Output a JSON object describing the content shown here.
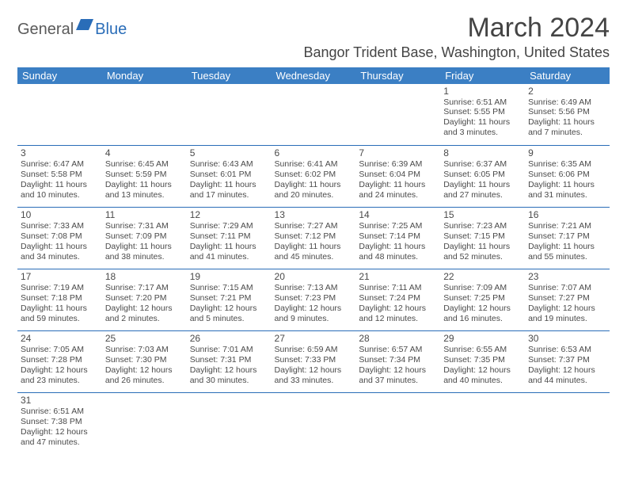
{
  "logo": {
    "part1": "General",
    "part2": "Blue"
  },
  "title": "March 2024",
  "location": "Bangor Trident Base, Washington, United States",
  "colors": {
    "header_bg": "#3b7fc4",
    "header_text": "#ffffff",
    "border": "#2a6db8",
    "text": "#4a4a4a",
    "logo_gray": "#5a5a5a",
    "logo_blue": "#2a6db8"
  },
  "dayHeaders": [
    "Sunday",
    "Monday",
    "Tuesday",
    "Wednesday",
    "Thursday",
    "Friday",
    "Saturday"
  ],
  "weeks": [
    [
      {
        "n": "",
        "lines": []
      },
      {
        "n": "",
        "lines": []
      },
      {
        "n": "",
        "lines": []
      },
      {
        "n": "",
        "lines": []
      },
      {
        "n": "",
        "lines": []
      },
      {
        "n": "1",
        "lines": [
          "Sunrise: 6:51 AM",
          "Sunset: 5:55 PM",
          "Daylight: 11 hours",
          "and 3 minutes."
        ]
      },
      {
        "n": "2",
        "lines": [
          "Sunrise: 6:49 AM",
          "Sunset: 5:56 PM",
          "Daylight: 11 hours",
          "and 7 minutes."
        ]
      }
    ],
    [
      {
        "n": "3",
        "lines": [
          "Sunrise: 6:47 AM",
          "Sunset: 5:58 PM",
          "Daylight: 11 hours",
          "and 10 minutes."
        ]
      },
      {
        "n": "4",
        "lines": [
          "Sunrise: 6:45 AM",
          "Sunset: 5:59 PM",
          "Daylight: 11 hours",
          "and 13 minutes."
        ]
      },
      {
        "n": "5",
        "lines": [
          "Sunrise: 6:43 AM",
          "Sunset: 6:01 PM",
          "Daylight: 11 hours",
          "and 17 minutes."
        ]
      },
      {
        "n": "6",
        "lines": [
          "Sunrise: 6:41 AM",
          "Sunset: 6:02 PM",
          "Daylight: 11 hours",
          "and 20 minutes."
        ]
      },
      {
        "n": "7",
        "lines": [
          "Sunrise: 6:39 AM",
          "Sunset: 6:04 PM",
          "Daylight: 11 hours",
          "and 24 minutes."
        ]
      },
      {
        "n": "8",
        "lines": [
          "Sunrise: 6:37 AM",
          "Sunset: 6:05 PM",
          "Daylight: 11 hours",
          "and 27 minutes."
        ]
      },
      {
        "n": "9",
        "lines": [
          "Sunrise: 6:35 AM",
          "Sunset: 6:06 PM",
          "Daylight: 11 hours",
          "and 31 minutes."
        ]
      }
    ],
    [
      {
        "n": "10",
        "lines": [
          "Sunrise: 7:33 AM",
          "Sunset: 7:08 PM",
          "Daylight: 11 hours",
          "and 34 minutes."
        ]
      },
      {
        "n": "11",
        "lines": [
          "Sunrise: 7:31 AM",
          "Sunset: 7:09 PM",
          "Daylight: 11 hours",
          "and 38 minutes."
        ]
      },
      {
        "n": "12",
        "lines": [
          "Sunrise: 7:29 AM",
          "Sunset: 7:11 PM",
          "Daylight: 11 hours",
          "and 41 minutes."
        ]
      },
      {
        "n": "13",
        "lines": [
          "Sunrise: 7:27 AM",
          "Sunset: 7:12 PM",
          "Daylight: 11 hours",
          "and 45 minutes."
        ]
      },
      {
        "n": "14",
        "lines": [
          "Sunrise: 7:25 AM",
          "Sunset: 7:14 PM",
          "Daylight: 11 hours",
          "and 48 minutes."
        ]
      },
      {
        "n": "15",
        "lines": [
          "Sunrise: 7:23 AM",
          "Sunset: 7:15 PM",
          "Daylight: 11 hours",
          "and 52 minutes."
        ]
      },
      {
        "n": "16",
        "lines": [
          "Sunrise: 7:21 AM",
          "Sunset: 7:17 PM",
          "Daylight: 11 hours",
          "and 55 minutes."
        ]
      }
    ],
    [
      {
        "n": "17",
        "lines": [
          "Sunrise: 7:19 AM",
          "Sunset: 7:18 PM",
          "Daylight: 11 hours",
          "and 59 minutes."
        ]
      },
      {
        "n": "18",
        "lines": [
          "Sunrise: 7:17 AM",
          "Sunset: 7:20 PM",
          "Daylight: 12 hours",
          "and 2 minutes."
        ]
      },
      {
        "n": "19",
        "lines": [
          "Sunrise: 7:15 AM",
          "Sunset: 7:21 PM",
          "Daylight: 12 hours",
          "and 5 minutes."
        ]
      },
      {
        "n": "20",
        "lines": [
          "Sunrise: 7:13 AM",
          "Sunset: 7:23 PM",
          "Daylight: 12 hours",
          "and 9 minutes."
        ]
      },
      {
        "n": "21",
        "lines": [
          "Sunrise: 7:11 AM",
          "Sunset: 7:24 PM",
          "Daylight: 12 hours",
          "and 12 minutes."
        ]
      },
      {
        "n": "22",
        "lines": [
          "Sunrise: 7:09 AM",
          "Sunset: 7:25 PM",
          "Daylight: 12 hours",
          "and 16 minutes."
        ]
      },
      {
        "n": "23",
        "lines": [
          "Sunrise: 7:07 AM",
          "Sunset: 7:27 PM",
          "Daylight: 12 hours",
          "and 19 minutes."
        ]
      }
    ],
    [
      {
        "n": "24",
        "lines": [
          "Sunrise: 7:05 AM",
          "Sunset: 7:28 PM",
          "Daylight: 12 hours",
          "and 23 minutes."
        ]
      },
      {
        "n": "25",
        "lines": [
          "Sunrise: 7:03 AM",
          "Sunset: 7:30 PM",
          "Daylight: 12 hours",
          "and 26 minutes."
        ]
      },
      {
        "n": "26",
        "lines": [
          "Sunrise: 7:01 AM",
          "Sunset: 7:31 PM",
          "Daylight: 12 hours",
          "and 30 minutes."
        ]
      },
      {
        "n": "27",
        "lines": [
          "Sunrise: 6:59 AM",
          "Sunset: 7:33 PM",
          "Daylight: 12 hours",
          "and 33 minutes."
        ]
      },
      {
        "n": "28",
        "lines": [
          "Sunrise: 6:57 AM",
          "Sunset: 7:34 PM",
          "Daylight: 12 hours",
          "and 37 minutes."
        ]
      },
      {
        "n": "29",
        "lines": [
          "Sunrise: 6:55 AM",
          "Sunset: 7:35 PM",
          "Daylight: 12 hours",
          "and 40 minutes."
        ]
      },
      {
        "n": "30",
        "lines": [
          "Sunrise: 6:53 AM",
          "Sunset: 7:37 PM",
          "Daylight: 12 hours",
          "and 44 minutes."
        ]
      }
    ],
    [
      {
        "n": "31",
        "lines": [
          "Sunrise: 6:51 AM",
          "Sunset: 7:38 PM",
          "Daylight: 12 hours",
          "and 47 minutes."
        ]
      },
      {
        "n": "",
        "lines": []
      },
      {
        "n": "",
        "lines": []
      },
      {
        "n": "",
        "lines": []
      },
      {
        "n": "",
        "lines": []
      },
      {
        "n": "",
        "lines": []
      },
      {
        "n": "",
        "lines": []
      }
    ]
  ]
}
